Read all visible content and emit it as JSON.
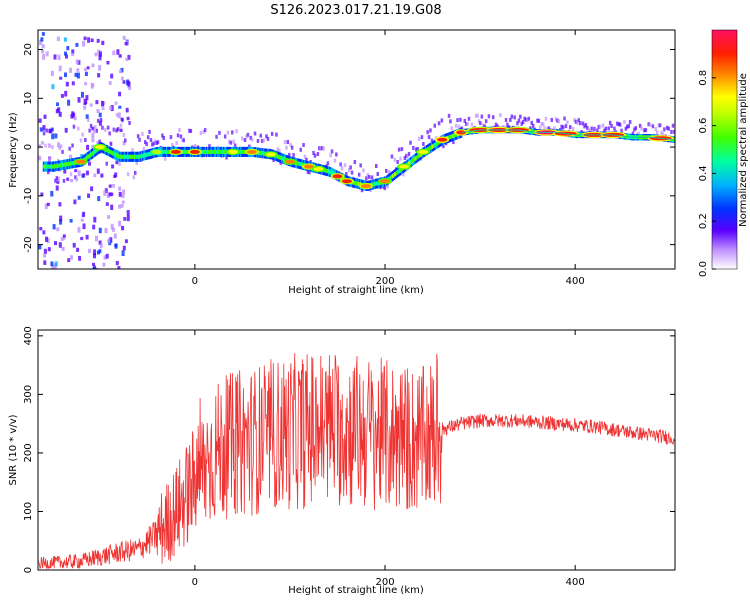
{
  "title": "S126.2023.017.21.19.G08",
  "chart_data": [
    {
      "type": "heatmap",
      "xlabel": "Height of straight line (km)",
      "ylabel": "Frequency (Hz)",
      "xlim": [
        -165,
        505
      ],
      "ylim": [
        -25,
        24
      ],
      "xticks": [
        0,
        200,
        400
      ],
      "yticks": [
        20,
        10,
        0,
        -10,
        -20
      ],
      "colorbar": {
        "label": "Normalized spectral amplitude",
        "range": [
          0.0,
          1.0
        ],
        "ticks": [
          0.0,
          0.2,
          0.4,
          0.6,
          0.8
        ]
      },
      "ridge": {
        "x": [
          -150,
          -120,
          -100,
          -80,
          -60,
          -40,
          -20,
          0,
          20,
          40,
          60,
          80,
          100,
          120,
          140,
          160,
          180,
          200,
          220,
          240,
          260,
          280,
          300,
          320,
          340,
          360,
          380,
          400,
          420,
          440,
          460,
          480,
          505
        ],
        "y": [
          -4,
          -3,
          0,
          -2,
          -2,
          -1,
          -1,
          -1,
          -1,
          -1,
          -1,
          -1.5,
          -3,
          -4,
          -5,
          -7,
          -8,
          -7,
          -4,
          -1,
          1.5,
          3,
          3.5,
          3.5,
          3.5,
          3,
          3,
          2.5,
          2.5,
          2.5,
          2,
          2,
          1.5
        ]
      }
    },
    {
      "type": "line",
      "xlabel": "Height of straight line (km)",
      "ylabel": "SNR (10 * v/v)",
      "xlim": [
        -165,
        505
      ],
      "ylim": [
        0,
        410
      ],
      "xticks": [
        0,
        200,
        400
      ],
      "yticks": [
        0,
        100,
        200,
        300,
        400
      ],
      "color": "#ee3333",
      "envelope": {
        "x": [
          -165,
          -120,
          -80,
          -60,
          -40,
          -20,
          0,
          20,
          40,
          60,
          80,
          100,
          120,
          140,
          160,
          180,
          200,
          220,
          240,
          260,
          280,
          300,
          340,
          380,
          420,
          460,
          505
        ],
        "y": [
          10,
          15,
          30,
          35,
          60,
          100,
          150,
          200,
          215,
          220,
          230,
          235,
          240,
          245,
          240,
          235,
          230,
          225,
          220,
          240,
          250,
          255,
          255,
          250,
          245,
          235,
          225
        ]
      }
    }
  ]
}
